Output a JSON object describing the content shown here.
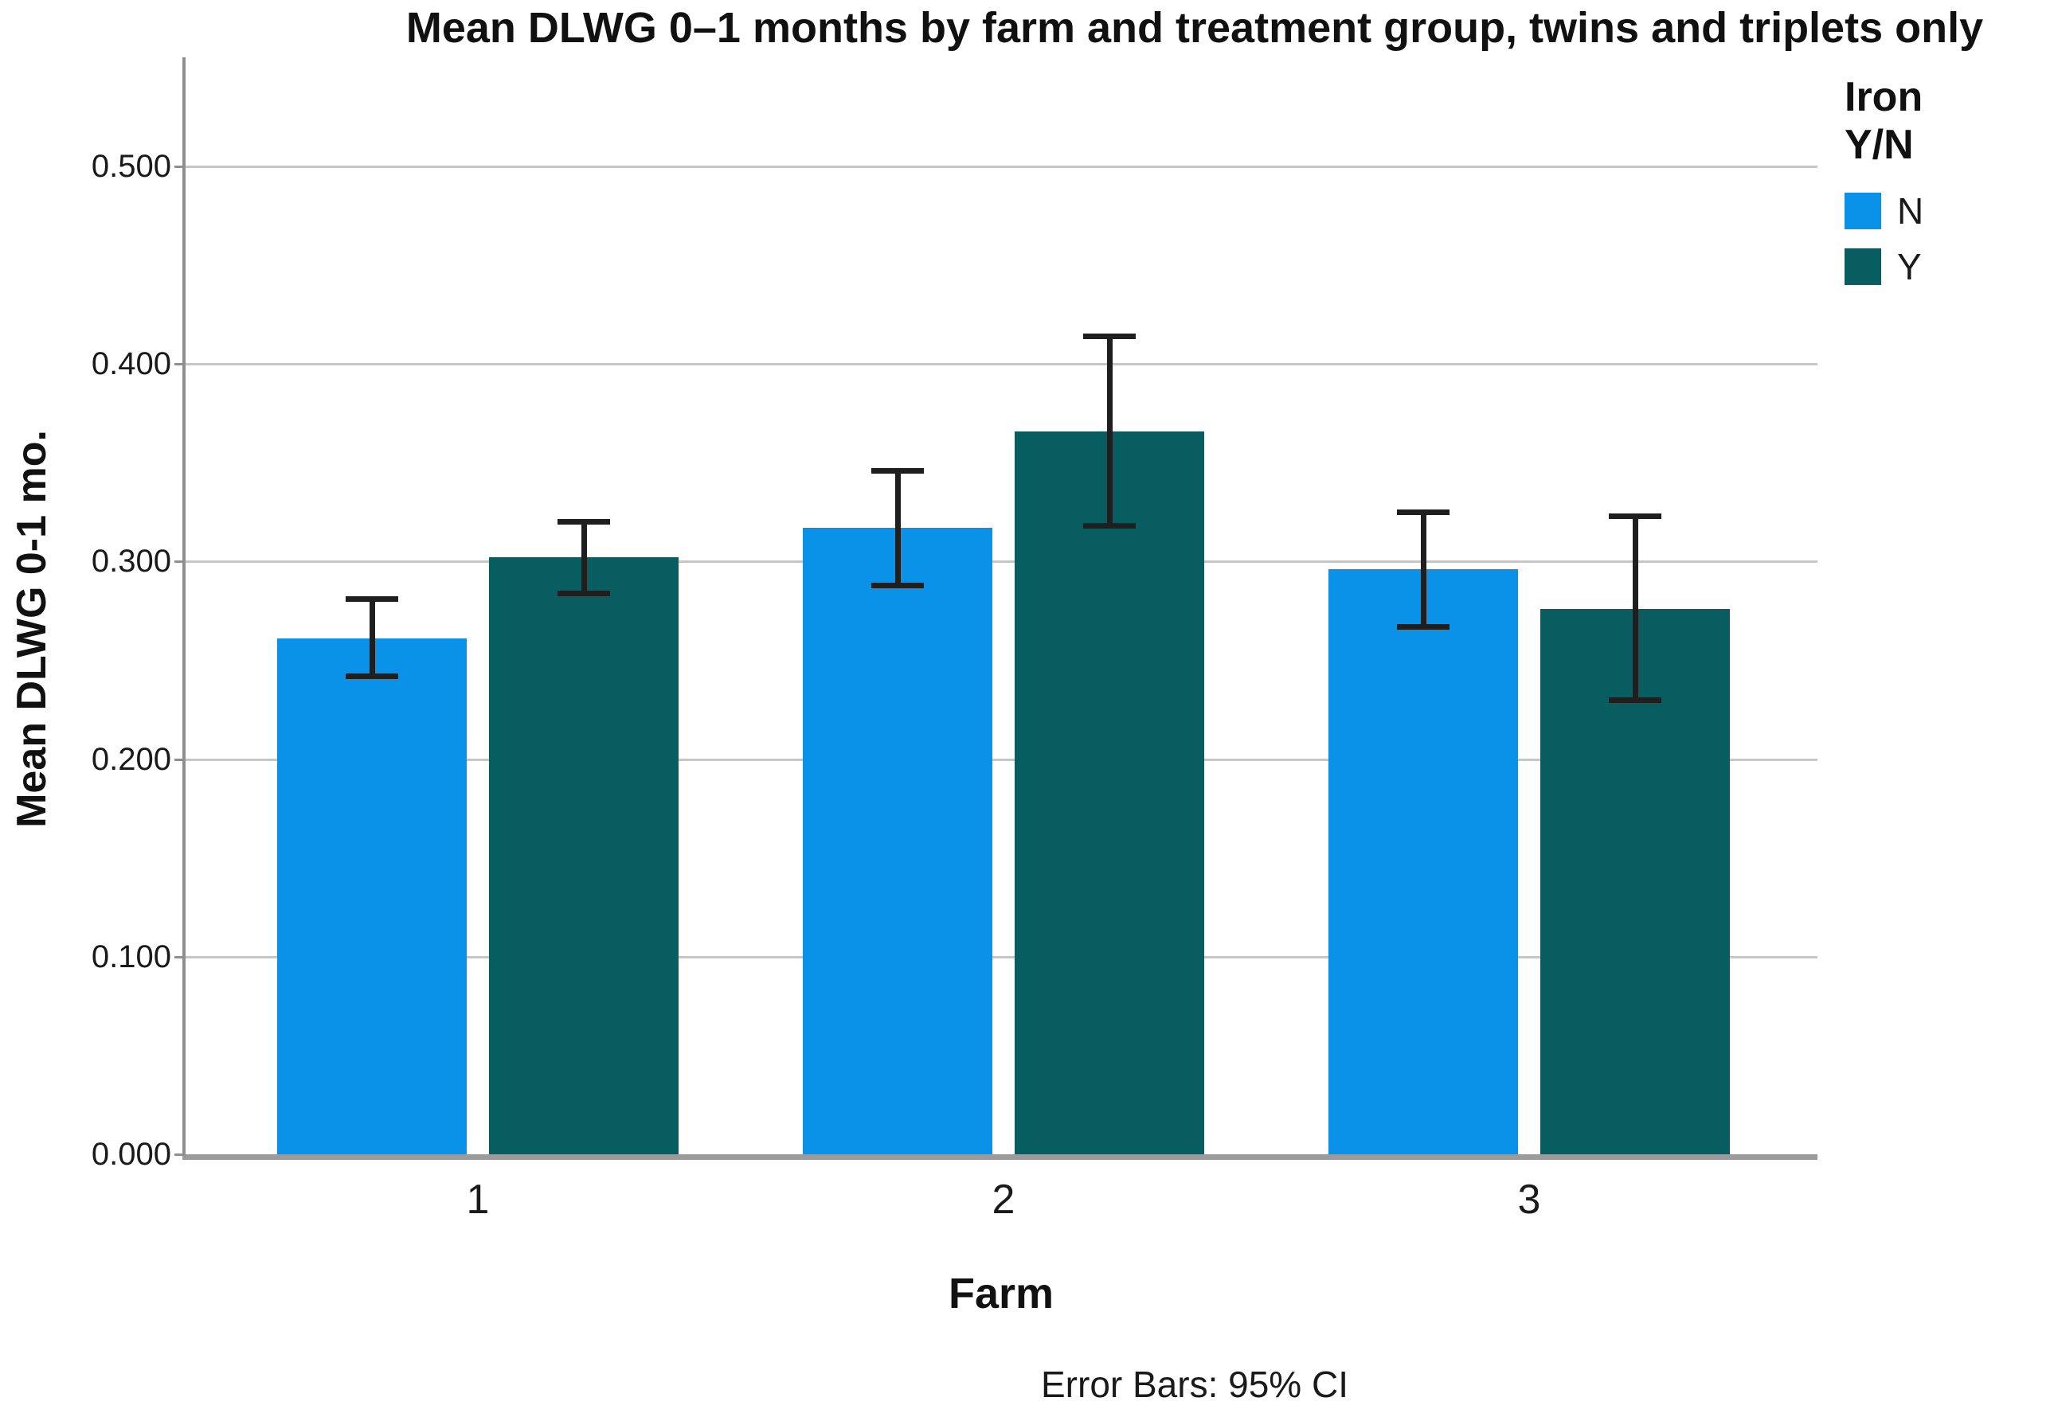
{
  "chart_data": {
    "type": "bar",
    "title": "Mean DLWG 0–1 months by farm and treatment group, twins and triplets only",
    "xlabel": "Farm",
    "ylabel": "Mean DLWG 0-1 mo.",
    "footnote": "Error Bars: 95% CI",
    "error_bars": "95% CI",
    "categories": [
      "1",
      "2",
      "3"
    ],
    "series": [
      {
        "name": "N",
        "color": "#0a92e8",
        "values": [
          0.261,
          0.317,
          0.296
        ],
        "ci_low": [
          0.242,
          0.288,
          0.267
        ],
        "ci_high": [
          0.281,
          0.346,
          0.325
        ]
      },
      {
        "name": "Y",
        "color": "#075d60",
        "values": [
          0.302,
          0.366,
          0.276
        ],
        "ci_low": [
          0.284,
          0.318,
          0.23
        ],
        "ci_high": [
          0.32,
          0.414,
          0.323
        ]
      }
    ],
    "ylim": [
      0.0,
      0.555
    ],
    "yticks": [
      0.0,
      0.1,
      0.2,
      0.3,
      0.4,
      0.5
    ],
    "ytick_labels": [
      "0.000",
      "0.100",
      "0.200",
      "0.300",
      "0.400",
      "0.500"
    ],
    "grid": "horizontal-gridlines-on",
    "legend": {
      "title_lines": [
        "Iron",
        "Y/N"
      ],
      "position": "top-right",
      "items": [
        {
          "label": "N",
          "color": "#0a92e8"
        },
        {
          "label": "Y",
          "color": "#075d60"
        }
      ]
    },
    "colors": {
      "gridline": "#c6c6c6",
      "axis_line": "#8f8f8f",
      "error_bar": "#1f1f1f",
      "background": "#ffffff"
    }
  }
}
